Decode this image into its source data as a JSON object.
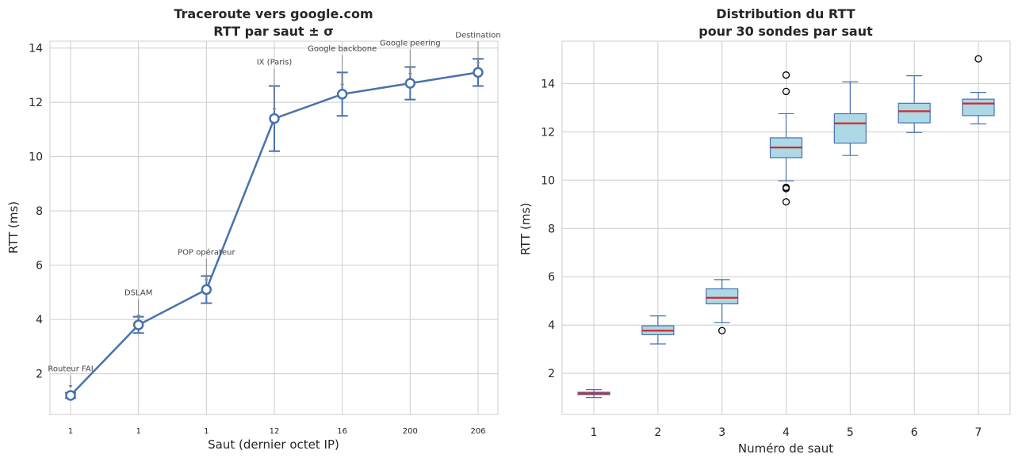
{
  "chart_data": [
    {
      "type": "line",
      "title": [
        "Traceroute vers google.com",
        "RTT par saut ± σ"
      ],
      "xlabel": "Saut (dernier octet IP)",
      "ylabel": "RTT (ms)",
      "x_ticklabels": [
        "1",
        "1",
        "1",
        "12",
        "16",
        "200",
        "206"
      ],
      "y": [
        1.2,
        3.8,
        5.1,
        11.4,
        12.3,
        12.7,
        13.1
      ],
      "yerr": [
        0.1,
        0.3,
        0.5,
        1.2,
        0.8,
        0.6,
        0.5
      ],
      "annotations": [
        "Routeur FAI",
        "DSLAM",
        "POP opérateur",
        "IX (Paris)",
        "Google backbone",
        "Google peering",
        "Destination"
      ],
      "ylim": [
        0.5,
        14.25
      ],
      "yticks": [
        2,
        4,
        6,
        8,
        10,
        12,
        14
      ],
      "grid": true,
      "line_color": "#4872ae"
    },
    {
      "type": "box",
      "title": [
        "Distribution du RTT",
        "pour 30 sondes par saut"
      ],
      "xlabel": "Numéro de saut",
      "ylabel": "RTT (ms)",
      "categories": [
        "1",
        "2",
        "3",
        "4",
        "5",
        "6",
        "7"
      ],
      "boxes": [
        {
          "whislo": 1.0,
          "q1": 1.12,
          "med": 1.17,
          "q3": 1.22,
          "whishi": 1.33,
          "fliers": []
        },
        {
          "whislo": 3.22,
          "q1": 3.6,
          "med": 3.77,
          "q3": 3.97,
          "whishi": 4.38,
          "fliers": []
        },
        {
          "whislo": 4.1,
          "q1": 4.88,
          "med": 5.13,
          "q3": 5.5,
          "whishi": 5.88,
          "fliers": [
            3.77
          ]
        },
        {
          "whislo": 9.97,
          "q1": 10.93,
          "med": 11.35,
          "q3": 11.75,
          "whishi": 12.75,
          "fliers": [
            14.35,
            13.67,
            9.7,
            9.65,
            9.1
          ]
        },
        {
          "whislo": 11.02,
          "q1": 11.53,
          "med": 12.35,
          "q3": 12.75,
          "whishi": 14.07,
          "fliers": []
        },
        {
          "whislo": 11.97,
          "q1": 12.37,
          "med": 12.85,
          "q3": 13.18,
          "whishi": 14.32,
          "fliers": []
        },
        {
          "whislo": 12.33,
          "q1": 12.67,
          "med": 13.17,
          "q3": 13.35,
          "whishi": 13.63,
          "fliers": [
            15.02
          ]
        }
      ],
      "ylim": [
        0.3,
        15.75
      ],
      "yticks": [
        2,
        4,
        6,
        8,
        10,
        12,
        14
      ],
      "grid": true,
      "box_fill": "#add8e6",
      "box_edge": "#4872ae",
      "median_color": "#d62728"
    }
  ]
}
